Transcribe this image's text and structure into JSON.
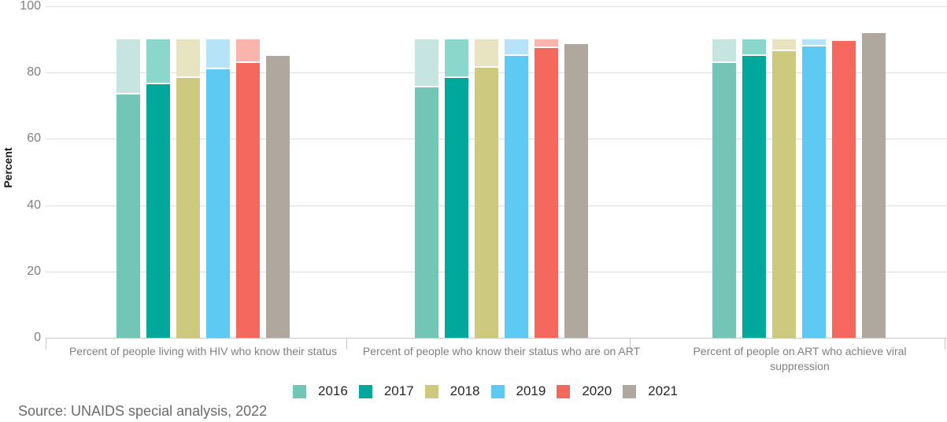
{
  "chart_data": {
    "type": "bar",
    "ylabel": "Percent",
    "ylim": [
      0,
      100
    ],
    "yticks": [
      0,
      20,
      40,
      60,
      80,
      100
    ],
    "target_value": 90,
    "target_note": "pale cap shows gap to 90% target for 2016-2020 bars",
    "grid": "horizontal",
    "legend_position": "bottom-center",
    "categories": [
      "Percent of people living with HIV who know their status",
      "Percent of people who know their status who are on ART",
      "Percent of people on ART who achieve viral suppression"
    ],
    "series": [
      {
        "name": "2016",
        "color": "#73C6B6",
        "light_color": "#C6E5E0",
        "values": [
          73.5,
          75.5,
          83
        ]
      },
      {
        "name": "2017",
        "color": "#00A79B",
        "light_color": "#8CD7CC",
        "values": [
          76.5,
          78.5,
          85
        ]
      },
      {
        "name": "2018",
        "color": "#CDC97F",
        "light_color": "#E8E4C2",
        "values": [
          78.5,
          81.5,
          86.5
        ]
      },
      {
        "name": "2019",
        "color": "#5EC9F2",
        "light_color": "#B7E3F8",
        "values": [
          81,
          85,
          88
        ]
      },
      {
        "name": "2020",
        "color": "#F4685E",
        "light_color": "#F9B4AD",
        "values": [
          83,
          87.5,
          89.5
        ]
      },
      {
        "name": "2021",
        "color": "#B0A79F",
        "light_color": null,
        "values": [
          85,
          88.5,
          92
        ]
      }
    ],
    "source": "Source: UNAIDS special analysis, 2022"
  }
}
